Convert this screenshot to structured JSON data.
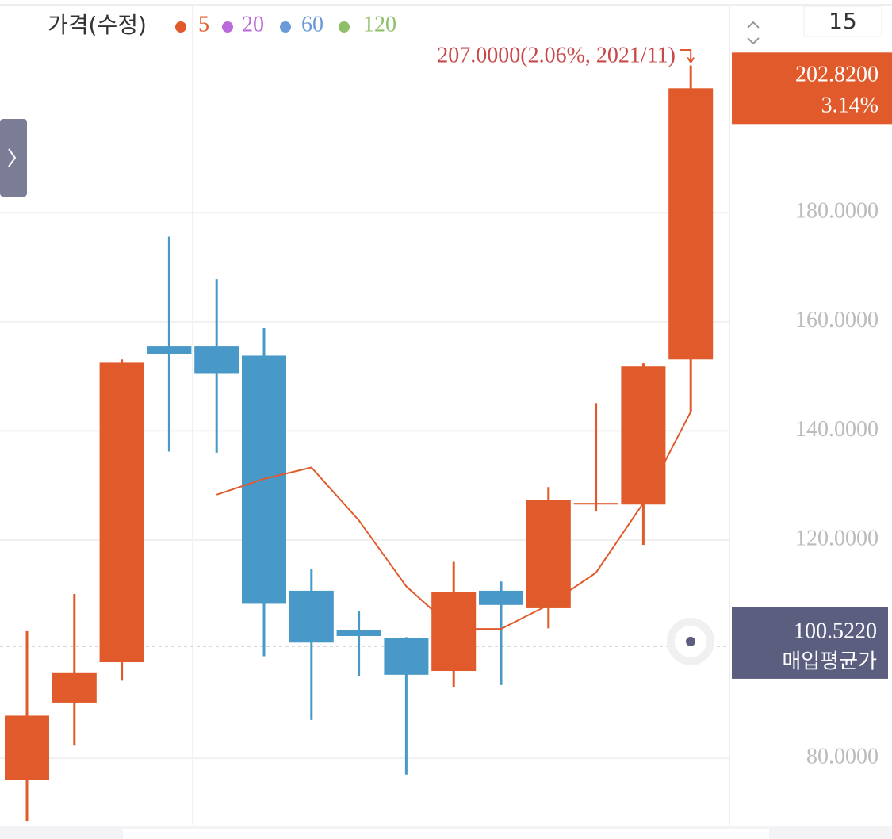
{
  "chart_data": {
    "type": "candlestick",
    "legend_title": "가격(수정)",
    "up_color": "#e05a2b",
    "down_color": "#4899c8",
    "open": [
      76.0,
      90.2,
      97.6,
      155.6,
      155.6,
      153.8,
      110.7,
      103.5,
      102.0,
      96.0,
      110.7,
      107.5,
      126.5,
      126.5,
      153.1
    ],
    "high": [
      103.3,
      110.1,
      153.1,
      175.6,
      167.8,
      158.9,
      114.7,
      107.0,
      102.2,
      116.0,
      112.4,
      129.7,
      145.1,
      152.4,
      207
    ],
    "low": [
      68.5,
      82.3,
      94.2,
      136.2,
      136.0,
      98.7,
      87.0,
      95.0,
      77.0,
      93.1,
      93.4,
      103.8,
      125.2,
      119.1,
      143.5
    ],
    "close": [
      87.8,
      95.6,
      152.5,
      154.1,
      150.6,
      108.3,
      101.2,
      102.4,
      95.3,
      110.4,
      108.1,
      127.4,
      126.8,
      151.8,
      202.82
    ],
    "series": [
      {
        "name": "5",
        "color": "#e05a2b",
        "values": [
          null,
          null,
          null,
          null,
          128.3,
          131.2,
          133.3,
          123.6,
          111.5,
          103.7,
          103.7,
          108.1,
          114.0,
          126.8,
          143.5
        ]
      },
      {
        "name": "20",
        "color": "#b86bd9"
      },
      {
        "name": "60",
        "color": "#6b9ad9"
      },
      {
        "name": "120",
        "color": "#8fbf6b"
      }
    ],
    "ylim": [
      67.8,
      219
    ],
    "yticks": [
      {
        "value": 80,
        "label": "80.0000"
      },
      {
        "value": 120,
        "label": "120.0000"
      },
      {
        "value": 140,
        "label": "140.0000"
      },
      {
        "value": 160,
        "label": "160.0000"
      },
      {
        "value": 180,
        "label": "180.0000"
      }
    ],
    "grid": true,
    "high_annotation": "207.0000(2.06%, 2021/11)",
    "last_price": {
      "value": 202.82,
      "label": "202.8200"
    },
    "last_change": "3.14%",
    "avg_price": {
      "value": 100.522,
      "label": "100.5220"
    },
    "avg_label": "매입평균가",
    "period": 15
  }
}
